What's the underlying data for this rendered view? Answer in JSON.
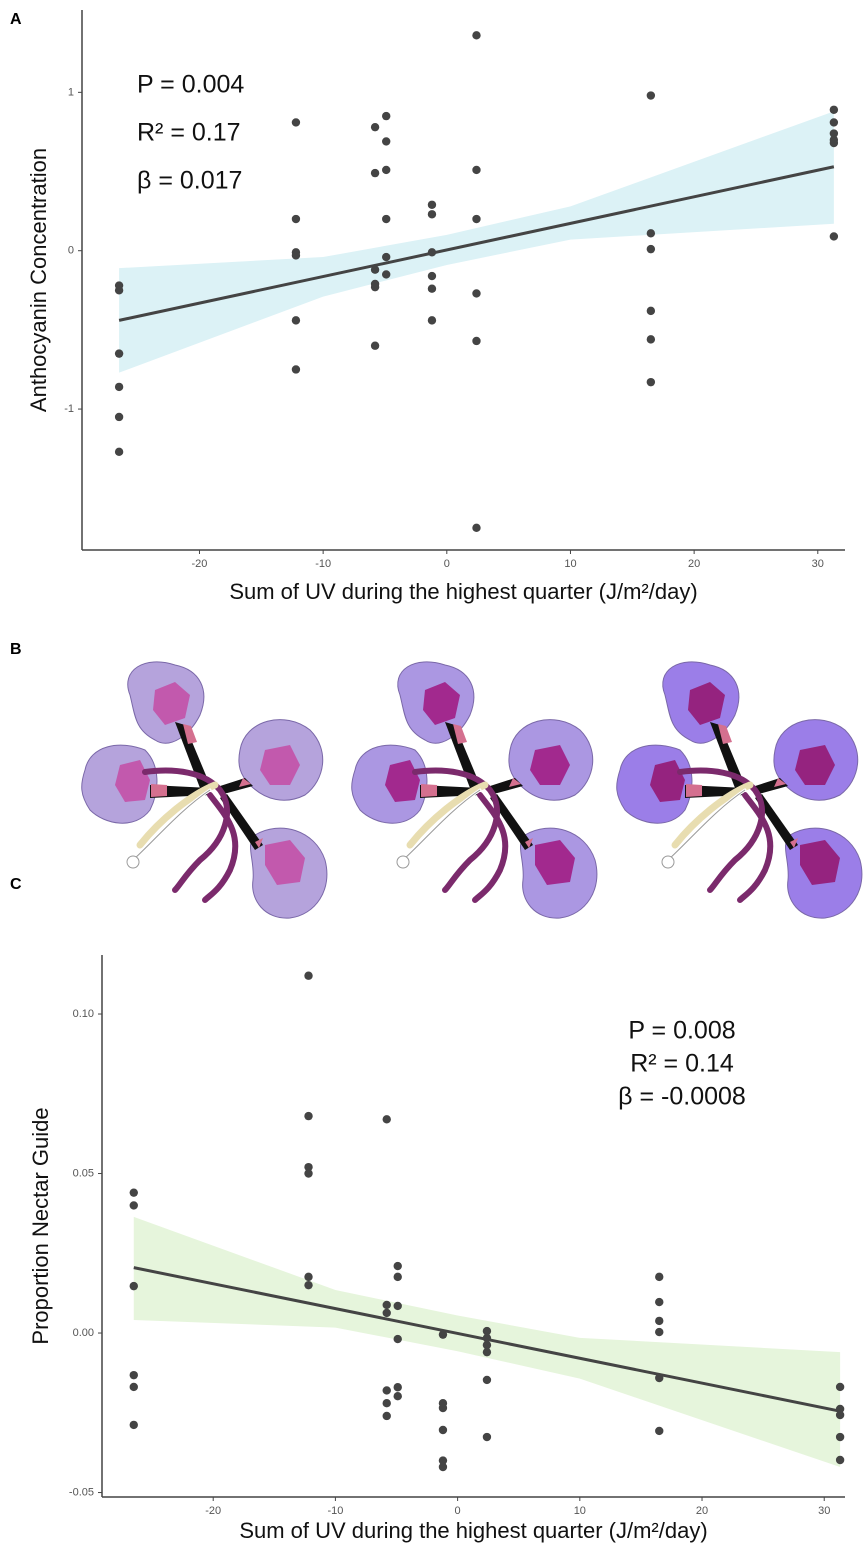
{
  "figure": {
    "panel_labels": [
      "A",
      "B",
      "C"
    ]
  },
  "chart_data": [
    {
      "type": "scatter",
      "x_label": "Sum of UV during the highest quarter (J/m²/day)",
      "y_label": "Anthocyanin Concentration",
      "annotations": [
        "P = 0.004",
        "R² = 0.17",
        "β = 0.017"
      ],
      "x": [
        -26.5,
        -26.5,
        -26.5,
        -26.5,
        -26.5,
        -26.5,
        -12.2,
        -12.2,
        -12.2,
        -12.2,
        -12.2,
        -12.2,
        -5.8,
        -5.8,
        -5.8,
        -5.8,
        -5.8,
        -5.8,
        -4.9,
        -4.9,
        -4.9,
        -4.9,
        -4.9,
        -4.9,
        -1.2,
        -1.2,
        -1.2,
        -1.2,
        -1.2,
        -1.2,
        2.4,
        2.4,
        2.4,
        2.4,
        2.4,
        2.4,
        16.5,
        16.5,
        16.5,
        16.5,
        16.5,
        16.5,
        31.3,
        31.3,
        31.3,
        31.3,
        31.3,
        31.3
      ],
      "values": [
        -0.22,
        -0.25,
        -0.65,
        -0.86,
        -1.05,
        -1.27,
        0.81,
        0.2,
        -0.01,
        -0.03,
        -0.44,
        -0.75,
        0.78,
        0.49,
        -0.12,
        -0.21,
        -0.23,
        -0.6,
        0.85,
        0.69,
        0.51,
        0.2,
        -0.04,
        -0.15,
        0.29,
        0.23,
        -0.01,
        -0.16,
        -0.24,
        -0.44,
        1.36,
        0.51,
        0.2,
        -0.27,
        -0.57,
        -1.75,
        0.98,
        0.11,
        0.01,
        -0.38,
        -0.56,
        -0.83,
        0.89,
        0.81,
        0.74,
        0.7,
        0.68,
        0.09
      ],
      "color": "#444444",
      "fit": {
        "x": [
          -26.5,
          31.3
        ],
        "y": [
          -0.44,
          0.53
        ],
        "color": "#444444"
      },
      "band": {
        "x": [
          -26.5,
          -10,
          0,
          10,
          31.3
        ],
        "upper": [
          -0.11,
          -0.04,
          0.1,
          0.28,
          0.88
        ],
        "lower": [
          -0.77,
          -0.29,
          -0.09,
          0.07,
          0.17
        ],
        "color": "#dcf2f6"
      },
      "xlim": [
        -29.5,
        32.2
      ],
      "ylim": [
        -1.89,
        1.52
      ],
      "xticks": [
        -20,
        -10,
        0,
        10,
        20,
        30
      ],
      "yticks": [
        -1,
        0,
        1
      ],
      "grid": false
    },
    {
      "type": "scatter",
      "x_label": "Sum of UV during the highest quarter (J/m²/day)",
      "y_label": "Proportion Nectar Guide",
      "annotations": [
        "P = 0.008",
        "R² = 0.14",
        "β = -0.0008"
      ],
      "x": [
        -26.5,
        -26.5,
        -26.5,
        -26.5,
        -26.5,
        -26.5,
        -12.2,
        -12.2,
        -12.2,
        -12.2,
        -12.2,
        -12.2,
        -5.8,
        -5.8,
        -5.8,
        -5.8,
        -5.8,
        -5.8,
        -4.9,
        -4.9,
        -4.9,
        -4.9,
        -4.9,
        -4.9,
        -1.2,
        -1.2,
        -1.2,
        -1.2,
        -1.2,
        -1.2,
        2.4,
        2.4,
        2.4,
        2.4,
        2.4,
        2.4,
        16.5,
        16.5,
        16.5,
        16.5,
        16.5,
        16.5,
        31.3,
        31.3,
        31.3,
        31.3,
        31.3
      ],
      "values": [
        0.044,
        0.04,
        0.0147,
        -0.0132,
        -0.0169,
        -0.0288,
        0.112,
        0.068,
        0.052,
        0.05,
        0.0176,
        0.015,
        0.067,
        0.0088,
        0.0063,
        -0.018,
        -0.022,
        -0.026,
        0.021,
        0.0176,
        0.0085,
        -0.0019,
        -0.017,
        -0.0198,
        -0.0005,
        -0.022,
        -0.0235,
        -0.0304,
        -0.04,
        -0.042,
        0.0006,
        -0.0016,
        -0.0038,
        -0.006,
        -0.0147,
        -0.0326,
        0.0176,
        0.0097,
        0.0038,
        0.0003,
        -0.0141,
        -0.0307,
        -0.0169,
        -0.0238,
        -0.0257,
        -0.0326,
        -0.0398
      ],
      "color": "#444444",
      "fit": {
        "x": [
          -26.5,
          31.3
        ],
        "y": [
          0.0205,
          -0.0245
        ],
        "color": "#444444"
      },
      "band": {
        "x": [
          -26.5,
          -10,
          0,
          10,
          31.3
        ],
        "upper": [
          0.0364,
          0.0135,
          0.0055,
          -0.0015,
          -0.006
        ],
        "lower": [
          0.0041,
          0.0017,
          -0.0057,
          -0.0143,
          -0.042
        ],
        "color": "#e6f5dc"
      },
      "xlim": [
        -29.1,
        31.7
      ],
      "ylim": [
        -0.0514,
        0.1185
      ],
      "xticks": [
        -20,
        -10,
        0,
        10,
        20,
        30
      ],
      "yticks": [
        {
          "value": -0.05,
          "label": "-0.05"
        },
        {
          "value": 0,
          "label": "0.00"
        },
        {
          "value": 0.05,
          "label": "0.05"
        },
        {
          "value": 0.1,
          "label": "0.10"
        }
      ],
      "grid": false
    }
  ]
}
